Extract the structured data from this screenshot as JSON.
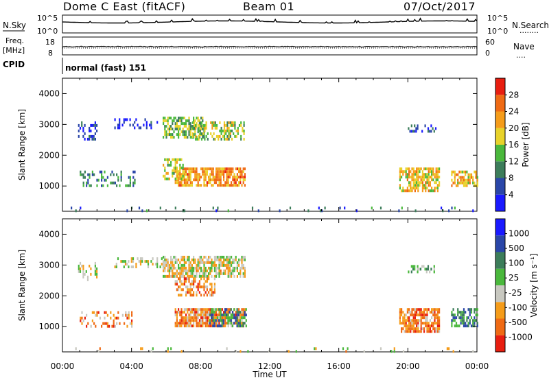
{
  "header": {
    "station": "Dome C East (fitACF)",
    "beam": "Beam 01",
    "date": "07/Oct/2017"
  },
  "panels": {
    "nsky": {
      "label": "N.Sky",
      "left_ticks": [
        "10^5",
        "10^0"
      ],
      "right_ticks": [
        "10^5",
        "10^0"
      ],
      "right_label": "N.Search",
      "right_dots": "........"
    },
    "freq": {
      "label_line1": "Freq.",
      "label_line2": "[MHz]",
      "left_ticks": [
        "18",
        "8"
      ],
      "right_ticks": [
        "60",
        "0"
      ],
      "right_label": "Nave",
      "right_dots": "...."
    },
    "cpid": {
      "label": "CPID",
      "text": "normal (fast) 151"
    }
  },
  "colors": {
    "power_scale": [
      "#1a1aff",
      "#2a46a8",
      "#3c7d5a",
      "#4ab83c",
      "#e8d22a",
      "#f59c1a",
      "#ef6a14",
      "#e81e10"
    ],
    "velocity_scale": [
      "#e81e10",
      "#ef6a14",
      "#f59c1a",
      "#c8c8c0",
      "#4ab83c",
      "#3c7d5a",
      "#2a46a8",
      "#1a1aff"
    ]
  },
  "chart_data": [
    {
      "type": "heatmap",
      "name": "power",
      "ylabel": "Slant Range [km]",
      "y_ticks": [
        "1000",
        "2000",
        "3000",
        "4000"
      ],
      "ylim": [
        180,
        4500
      ],
      "colorbar_label": "Power [dB]",
      "colorbar_ticks": [
        "4",
        "8",
        "12",
        "16",
        "20",
        "24",
        "28"
      ],
      "colorbar_range": [
        0,
        30
      ],
      "x_range_hours": [
        0,
        24
      ],
      "blobs": [
        {
          "t0": 0.9,
          "t1": 2.0,
          "r0": 2500,
          "r1": 3100,
          "level": 0.15,
          "density": 0.35
        },
        {
          "t0": 3.0,
          "t1": 5.5,
          "r0": 2900,
          "r1": 3200,
          "level": 0.12,
          "density": 0.25
        },
        {
          "t0": 5.8,
          "t1": 8.2,
          "r0": 2600,
          "r1": 3250,
          "level": 0.45,
          "density": 0.6
        },
        {
          "t0": 7.5,
          "t1": 10.5,
          "r0": 2500,
          "r1": 3100,
          "level": 0.5,
          "density": 0.45
        },
        {
          "t0": 6.5,
          "t1": 10.6,
          "r0": 1000,
          "r1": 1600,
          "level": 0.72,
          "density": 0.75
        },
        {
          "t0": 1.0,
          "t1": 4.2,
          "r0": 1000,
          "r1": 1500,
          "level": 0.3,
          "density": 0.3
        },
        {
          "t0": 5.8,
          "t1": 7.0,
          "r0": 1200,
          "r1": 1900,
          "level": 0.5,
          "density": 0.5
        },
        {
          "t0": 19.5,
          "t1": 21.8,
          "r0": 800,
          "r1": 1600,
          "level": 0.6,
          "density": 0.65
        },
        {
          "t0": 22.5,
          "t1": 24.0,
          "r0": 1000,
          "r1": 1500,
          "level": 0.65,
          "density": 0.6
        },
        {
          "t0": 20.0,
          "t1": 21.6,
          "r0": 2800,
          "r1": 3000,
          "level": 0.2,
          "density": 0.45
        },
        {
          "t0": 0.3,
          "t1": 23.8,
          "r0": 180,
          "r1": 330,
          "level": 0.25,
          "density": 0.07
        }
      ]
    },
    {
      "type": "heatmap",
      "name": "velocity",
      "ylabel": "Slant Range [km]",
      "y_ticks": [
        "1000",
        "2000",
        "3000",
        "4000"
      ],
      "ylim": [
        180,
        4500
      ],
      "colorbar_label": "Velocity [m s⁻¹]",
      "colorbar_ticks": [
        "-1000",
        "-500",
        "-100",
        "-25",
        "25",
        "100",
        "500",
        "1000"
      ],
      "colorbar_range": [
        -1000,
        1000
      ],
      "x_range_hours": [
        0,
        24
      ],
      "xlabel": "Time UT",
      "x_ticks": [
        "00:00",
        "04:00",
        "08:00",
        "12:00",
        "16:00",
        "20:00",
        "00:00"
      ],
      "blobs": [
        {
          "t0": 0.9,
          "t1": 2.0,
          "r0": 2500,
          "r1": 3100,
          "level": 0.45,
          "density": 0.3
        },
        {
          "t0": 3.0,
          "t1": 5.8,
          "r0": 2900,
          "r1": 3250,
          "level": 0.45,
          "density": 0.3
        },
        {
          "t0": 5.8,
          "t1": 10.6,
          "r0": 2600,
          "r1": 3300,
          "level": 0.42,
          "density": 0.7
        },
        {
          "t0": 6.5,
          "t1": 8.8,
          "r0": 2000,
          "r1": 2600,
          "level": 0.25,
          "density": 0.5
        },
        {
          "t0": 6.5,
          "t1": 10.6,
          "r0": 1000,
          "r1": 1600,
          "level": 0.25,
          "density": 0.8
        },
        {
          "t0": 8.5,
          "t1": 10.6,
          "r0": 1000,
          "r1": 1600,
          "level": 0.7,
          "density": 0.5
        },
        {
          "t0": 1.0,
          "t1": 4.2,
          "r0": 1000,
          "r1": 1500,
          "level": 0.25,
          "density": 0.3
        },
        {
          "t0": 19.5,
          "t1": 21.8,
          "r0": 800,
          "r1": 1600,
          "level": 0.25,
          "density": 0.7
        },
        {
          "t0": 22.5,
          "t1": 24.0,
          "r0": 1000,
          "r1": 1600,
          "level": 0.7,
          "density": 0.6
        },
        {
          "t0": 20.0,
          "t1": 21.6,
          "r0": 2800,
          "r1": 3000,
          "level": 0.55,
          "density": 0.45
        },
        {
          "t0": 0.3,
          "t1": 23.8,
          "r0": 180,
          "r1": 330,
          "level": 0.4,
          "density": 0.07
        }
      ]
    }
  ]
}
